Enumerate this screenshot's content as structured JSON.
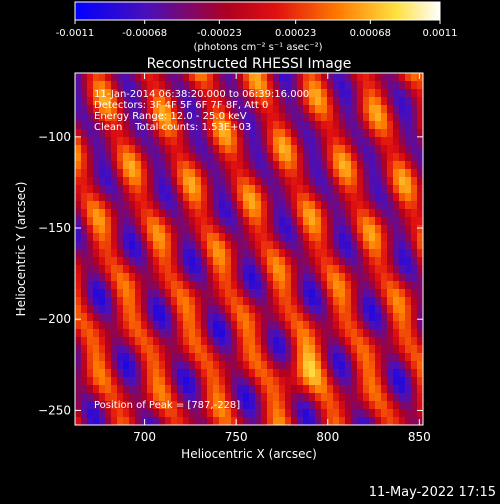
{
  "colorbar": {
    "tick_labels": [
      "-0.0011",
      "-0.00068",
      "-0.00023",
      "0.00023",
      "0.00068",
      "0.0011"
    ],
    "unit_label": "(photons cm⁻² s⁻¹ asec⁻²)",
    "range": [
      -0.0011,
      0.0011
    ]
  },
  "chart_data": {
    "type": "heatmap",
    "title": "Reconstructed RHESSI Image",
    "xlabel": "Heliocentric X (arcsec)",
    "ylabel": "Heliocentric Y (arcsec)",
    "xlim": [
      662,
      852
    ],
    "ylim": [
      -258,
      -65
    ],
    "xticks": [
      700,
      750,
      800,
      850
    ],
    "yticks": [
      -100,
      -150,
      -200,
      -250
    ],
    "colormap": [
      "#0000ff",
      "#6a0dad",
      "#cc0000",
      "#ff8800",
      "#ffff66",
      "#ffffff"
    ],
    "annotations": [
      "11-Jan-2014 06:38:20.000 to 06:39:16.000",
      "Detectors: 3F 4F 5F 6F 7F 8F, Att 0",
      "Energy Range: 12.0 - 25.0 keV",
      "Clean    Total counts: 1.53E+03"
    ],
    "peak_label": "Position of Peak = [787,-228]",
    "peak_position": [
      787,
      -228
    ]
  },
  "footer": {
    "timestamp": "11-May-2022 17:15"
  }
}
